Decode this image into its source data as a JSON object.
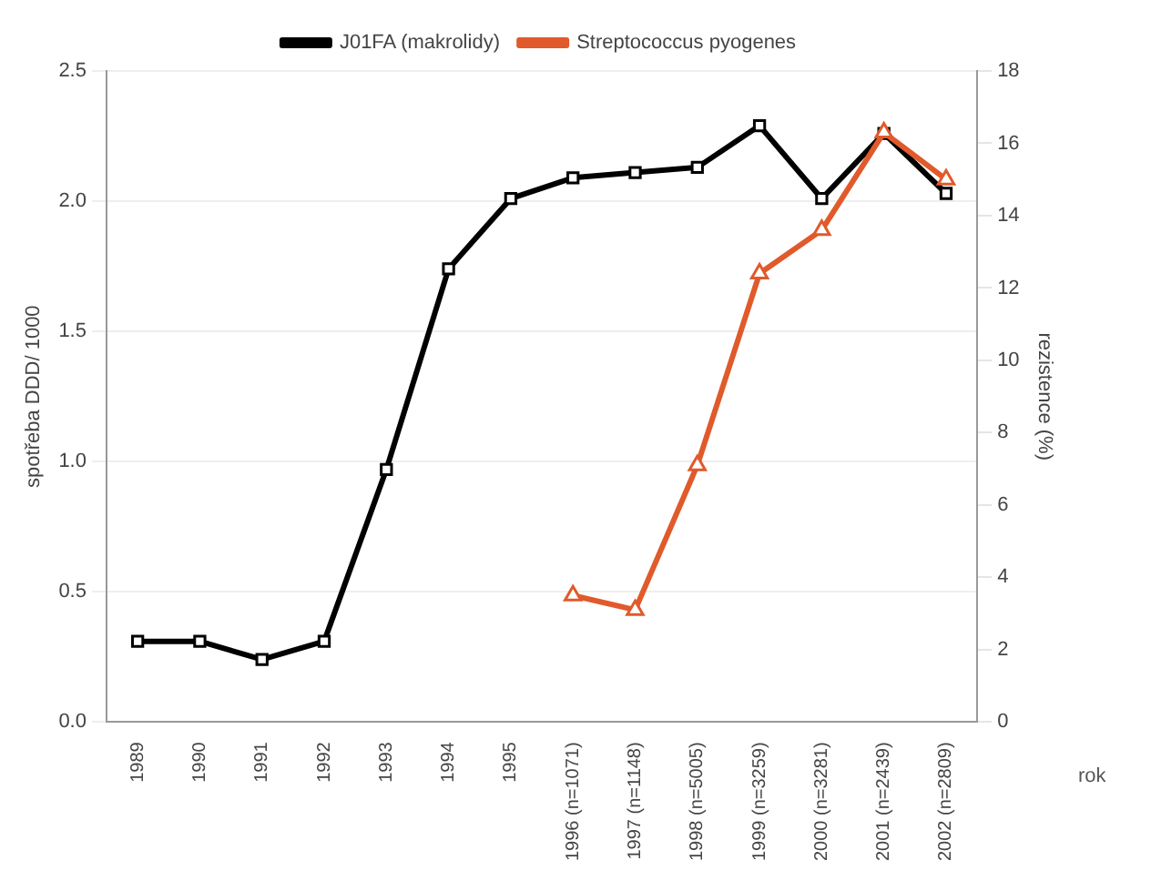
{
  "chart_data": {
    "type": "line",
    "xlabel": "rok",
    "ylabel": "spotřeba DDD/ 1000",
    "y2label": "rezistence (%)",
    "categories": [
      "1989",
      "1990",
      "1991",
      "1992",
      "1993",
      "1994",
      "1995",
      "1996 (n=1071)",
      "1997 (n=1148)",
      "1998 (n=5005)",
      "1999 (n=3259)",
      "2000 (n=3281)",
      "2001 (n=2439)",
      "2002 (n=2809)"
    ],
    "series": [
      {
        "name": "J01FA (makrolidy)",
        "color": "#000000",
        "marker": "square",
        "values": [
          0.31,
          0.31,
          0.24,
          0.31,
          0.97,
          1.74,
          2.01,
          2.09,
          2.11,
          2.13,
          2.29,
          2.01,
          2.26,
          2.03
        ]
      },
      {
        "name": "Streptococcus pyogenes",
        "color": "#e05a2b",
        "marker": "triangle",
        "axis": "y2",
        "values": [
          null,
          null,
          null,
          null,
          null,
          null,
          null,
          3.5,
          3.1,
          7.1,
          12.4,
          13.6,
          16.3,
          15.0
        ]
      }
    ],
    "ylim": [
      0,
      2.5
    ],
    "yticks": [
      {
        "value": 0,
        "label": "0.0"
      },
      {
        "value": 0.5,
        "label": "0.5"
      },
      {
        "value": 1,
        "label": "1.0"
      },
      {
        "value": 1.5,
        "label": "1.5"
      },
      {
        "value": 2,
        "label": "2.0"
      },
      {
        "value": 2.5,
        "label": "2.5"
      }
    ],
    "y2lim": [
      0,
      18
    ],
    "y2ticks": [
      0,
      2,
      4,
      6,
      8,
      10,
      12,
      14,
      16,
      18
    ],
    "grid": "y",
    "legend": "top",
    "line_style": "solid"
  }
}
